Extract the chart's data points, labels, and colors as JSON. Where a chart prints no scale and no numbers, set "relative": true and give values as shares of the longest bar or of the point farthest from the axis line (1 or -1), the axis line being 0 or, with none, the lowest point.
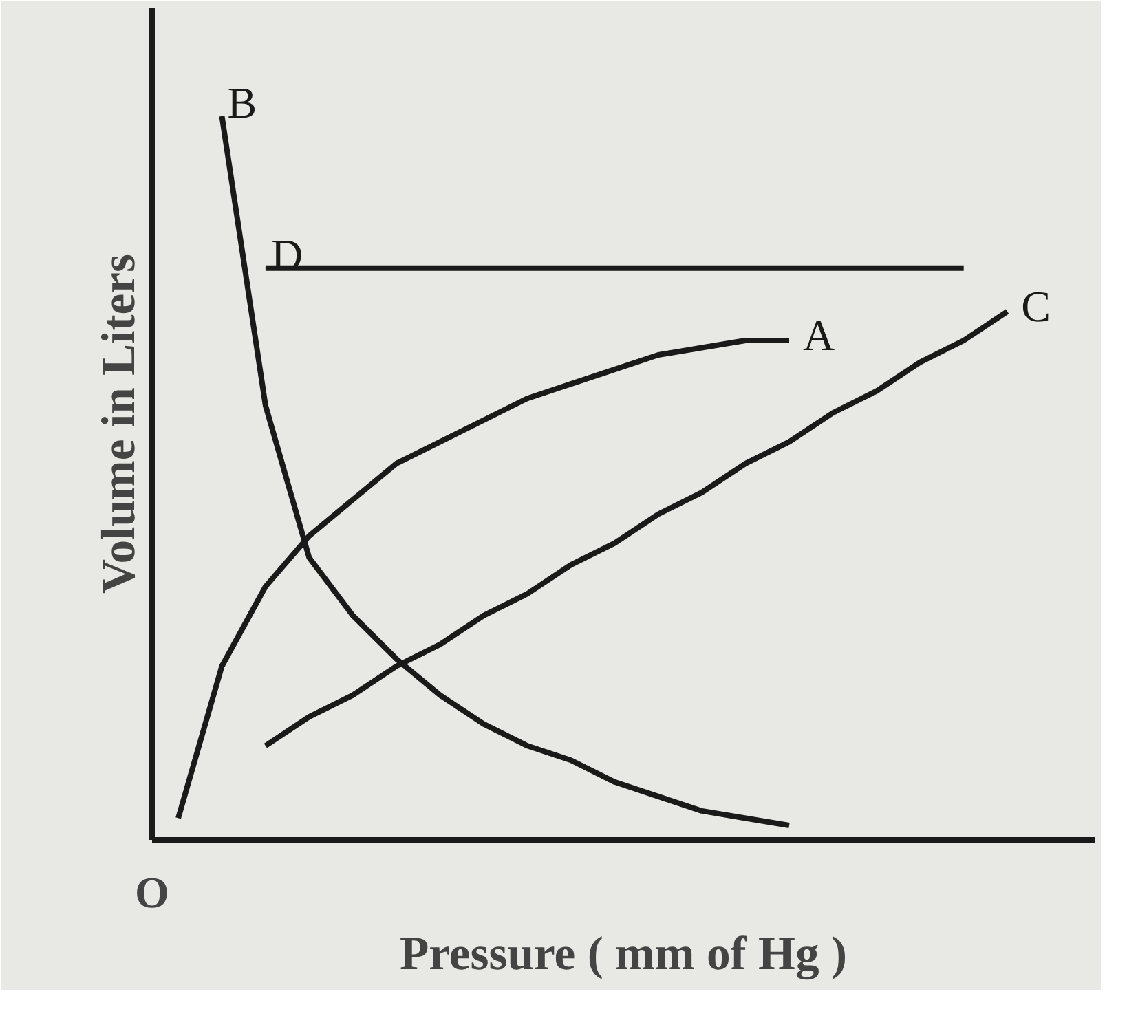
{
  "chart_data": {
    "type": "line",
    "relative": true,
    "xlabel": "Pressure ( mm of Hg )",
    "ylabel": "Volume in Liters",
    "annotations": [
      "O"
    ],
    "categories": [
      null,
      null,
      null,
      null,
      null,
      null,
      null,
      null,
      null,
      null,
      null,
      null,
      null,
      null,
      null,
      null,
      null,
      null,
      null,
      null,
      null
    ],
    "grid": false,
    "legend": false,
    "marker": "none",
    "line_style": "solid",
    "series": [
      {
        "name": "B",
        "color": "#1a1a1a",
        "values": [
          null,
          1.0,
          0.6,
          0.39,
          0.31,
          0.25,
          0.2,
          0.16,
          0.13,
          0.11,
          0.08,
          0.06,
          0.04,
          0.03,
          0.02,
          null,
          null,
          null,
          null,
          null,
          null
        ]
      },
      {
        "name": "D",
        "color": "#1a1a1a",
        "values": [
          null,
          null,
          0.79,
          0.79,
          0.79,
          0.79,
          0.79,
          0.79,
          0.79,
          0.79,
          0.79,
          0.79,
          0.79,
          0.79,
          0.79,
          0.79,
          0.79,
          0.79,
          0.79,
          null,
          null
        ]
      },
      {
        "name": "A",
        "color": "#1a1a1a",
        "values": [
          0.03,
          0.24,
          0.35,
          0.42,
          0.47,
          0.52,
          0.55,
          0.58,
          0.61,
          0.63,
          0.65,
          0.67,
          0.68,
          0.69,
          0.69,
          null,
          null,
          null,
          null,
          null,
          null
        ]
      },
      {
        "name": "C",
        "color": "#1a1a1a",
        "values": [
          null,
          null,
          0.13,
          0.17,
          0.2,
          0.24,
          0.27,
          0.31,
          0.34,
          0.38,
          0.41,
          0.45,
          0.48,
          0.52,
          0.55,
          0.59,
          0.62,
          0.66,
          0.69,
          0.73,
          null
        ]
      }
    ]
  }
}
